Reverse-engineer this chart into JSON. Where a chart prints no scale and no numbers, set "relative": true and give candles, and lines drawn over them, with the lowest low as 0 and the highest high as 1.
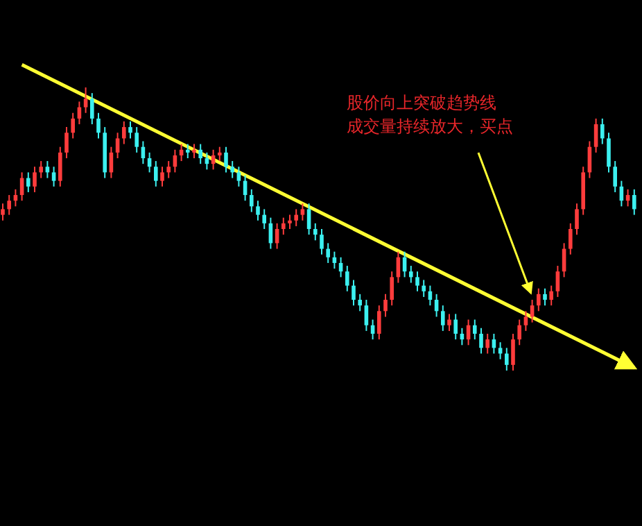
{
  "chart_data": {
    "type": "candlestick",
    "relative": true,
    "categories": [
      null,
      null,
      null,
      null,
      null,
      null,
      null,
      null,
      null,
      null,
      null,
      null,
      null,
      null,
      null,
      null,
      null,
      null,
      null,
      null,
      null,
      null,
      null,
      null,
      null,
      null,
      null,
      null,
      null,
      null,
      null,
      null,
      null,
      null,
      null,
      null,
      null,
      null,
      null,
      null,
      null,
      null,
      null,
      null,
      null,
      null,
      null,
      null,
      null,
      null,
      null,
      null,
      null,
      null,
      null,
      null,
      null,
      null,
      null,
      null,
      null,
      null,
      null,
      null,
      null,
      null,
      null,
      null,
      null,
      null,
      null,
      null,
      null,
      null,
      null,
      null,
      null,
      null,
      null,
      null,
      null,
      null,
      null,
      null,
      null,
      null,
      null,
      null,
      null,
      null,
      null,
      null,
      null,
      null,
      null,
      null,
      null,
      null,
      null,
      null
    ],
    "ohlc": [
      [
        0.55,
        0.59,
        0.53,
        0.57
      ],
      [
        0.57,
        0.62,
        0.55,
        0.6
      ],
      [
        0.6,
        0.64,
        0.58,
        0.62
      ],
      [
        0.62,
        0.7,
        0.6,
        0.68
      ],
      [
        0.68,
        0.7,
        0.63,
        0.65
      ],
      [
        0.65,
        0.72,
        0.63,
        0.7
      ],
      [
        0.7,
        0.74,
        0.68,
        0.72
      ],
      [
        0.72,
        0.74,
        0.68,
        0.7
      ],
      [
        0.7,
        0.72,
        0.65,
        0.67
      ],
      [
        0.67,
        0.79,
        0.65,
        0.77
      ],
      [
        0.77,
        0.86,
        0.75,
        0.84
      ],
      [
        0.84,
        0.91,
        0.82,
        0.89
      ],
      [
        0.89,
        0.95,
        0.87,
        0.93
      ],
      [
        0.93,
        1.0,
        0.91,
        0.96
      ],
      [
        0.96,
        0.98,
        0.87,
        0.89
      ],
      [
        0.89,
        0.91,
        0.82,
        0.84
      ],
      [
        0.84,
        0.86,
        0.68,
        0.7
      ],
      [
        0.7,
        0.79,
        0.68,
        0.77
      ],
      [
        0.77,
        0.84,
        0.75,
        0.82
      ],
      [
        0.82,
        0.88,
        0.8,
        0.86
      ],
      [
        0.86,
        0.88,
        0.82,
        0.84
      ],
      [
        0.84,
        0.86,
        0.77,
        0.79
      ],
      [
        0.79,
        0.81,
        0.73,
        0.75
      ],
      [
        0.75,
        0.77,
        0.7,
        0.72
      ],
      [
        0.72,
        0.74,
        0.65,
        0.67
      ],
      [
        0.67,
        0.72,
        0.65,
        0.7
      ],
      [
        0.7,
        0.74,
        0.68,
        0.72
      ],
      [
        0.72,
        0.78,
        0.7,
        0.76
      ],
      [
        0.76,
        0.8,
        0.74,
        0.78
      ],
      [
        0.78,
        0.8,
        0.75,
        0.77
      ],
      [
        0.77,
        0.8,
        0.75,
        0.78
      ],
      [
        0.78,
        0.8,
        0.73,
        0.75
      ],
      [
        0.75,
        0.77,
        0.71,
        0.73
      ],
      [
        0.73,
        0.78,
        0.71,
        0.76
      ],
      [
        0.76,
        0.79,
        0.74,
        0.77
      ],
      [
        0.77,
        0.79,
        0.7,
        0.72
      ],
      [
        0.72,
        0.74,
        0.68,
        0.7
      ],
      [
        0.7,
        0.72,
        0.65,
        0.67
      ],
      [
        0.67,
        0.69,
        0.6,
        0.62
      ],
      [
        0.62,
        0.64,
        0.56,
        0.58
      ],
      [
        0.58,
        0.6,
        0.53,
        0.55
      ],
      [
        0.55,
        0.57,
        0.5,
        0.52
      ],
      [
        0.52,
        0.54,
        0.43,
        0.45
      ],
      [
        0.45,
        0.52,
        0.43,
        0.5
      ],
      [
        0.5,
        0.54,
        0.48,
        0.52
      ],
      [
        0.52,
        0.55,
        0.5,
        0.53
      ],
      [
        0.53,
        0.57,
        0.51,
        0.55
      ],
      [
        0.55,
        0.59,
        0.53,
        0.57
      ],
      [
        0.57,
        0.59,
        0.48,
        0.5
      ],
      [
        0.5,
        0.52,
        0.46,
        0.48
      ],
      [
        0.48,
        0.5,
        0.41,
        0.43
      ],
      [
        0.43,
        0.45,
        0.38,
        0.4
      ],
      [
        0.4,
        0.42,
        0.36,
        0.38
      ],
      [
        0.38,
        0.4,
        0.33,
        0.35
      ],
      [
        0.35,
        0.37,
        0.28,
        0.3
      ],
      [
        0.3,
        0.32,
        0.23,
        0.25
      ],
      [
        0.25,
        0.27,
        0.21,
        0.23
      ],
      [
        0.23,
        0.25,
        0.14,
        0.16
      ],
      [
        0.16,
        0.18,
        0.11,
        0.13
      ],
      [
        0.13,
        0.23,
        0.11,
        0.21
      ],
      [
        0.21,
        0.27,
        0.19,
        0.25
      ],
      [
        0.25,
        0.35,
        0.23,
        0.33
      ],
      [
        0.33,
        0.42,
        0.31,
        0.4
      ],
      [
        0.4,
        0.42,
        0.33,
        0.35
      ],
      [
        0.35,
        0.37,
        0.31,
        0.33
      ],
      [
        0.33,
        0.35,
        0.28,
        0.3
      ],
      [
        0.3,
        0.32,
        0.26,
        0.28
      ],
      [
        0.28,
        0.3,
        0.23,
        0.25
      ],
      [
        0.25,
        0.27,
        0.19,
        0.21
      ],
      [
        0.21,
        0.23,
        0.14,
        0.16
      ],
      [
        0.16,
        0.2,
        0.14,
        0.18
      ],
      [
        0.18,
        0.2,
        0.11,
        0.13
      ],
      [
        0.13,
        0.15,
        0.09,
        0.11
      ],
      [
        0.11,
        0.18,
        0.09,
        0.16
      ],
      [
        0.16,
        0.18,
        0.11,
        0.13
      ],
      [
        0.13,
        0.15,
        0.06,
        0.08
      ],
      [
        0.08,
        0.13,
        0.06,
        0.11
      ],
      [
        0.11,
        0.13,
        0.06,
        0.08
      ],
      [
        0.08,
        0.1,
        0.04,
        0.06
      ],
      [
        0.06,
        0.08,
        0.0,
        0.02
      ],
      [
        0.02,
        0.13,
        0.0,
        0.11
      ],
      [
        0.11,
        0.18,
        0.09,
        0.16
      ],
      [
        0.16,
        0.21,
        0.14,
        0.19
      ],
      [
        0.19,
        0.25,
        0.17,
        0.23
      ],
      [
        0.23,
        0.29,
        0.21,
        0.27
      ],
      [
        0.27,
        0.29,
        0.23,
        0.25
      ],
      [
        0.25,
        0.3,
        0.23,
        0.28
      ],
      [
        0.28,
        0.37,
        0.26,
        0.35
      ],
      [
        0.35,
        0.45,
        0.33,
        0.43
      ],
      [
        0.43,
        0.52,
        0.41,
        0.5
      ],
      [
        0.5,
        0.59,
        0.48,
        0.57
      ],
      [
        0.57,
        0.72,
        0.55,
        0.7
      ],
      [
        0.7,
        0.81,
        0.68,
        0.79
      ],
      [
        0.79,
        0.89,
        0.77,
        0.87
      ],
      [
        0.87,
        0.89,
        0.8,
        0.82
      ],
      [
        0.82,
        0.84,
        0.7,
        0.72
      ],
      [
        0.72,
        0.74,
        0.63,
        0.65
      ],
      [
        0.65,
        0.67,
        0.58,
        0.6
      ],
      [
        0.6,
        0.64,
        0.58,
        0.62
      ],
      [
        0.62,
        0.64,
        0.55,
        0.57
      ]
    ],
    "colors": [
      "#ff3c3c",
      "#ff3c3c",
      "#ff3c3c",
      "#ff3c3c",
      "#3cf0f0",
      "#ff3c3c",
      "#ff3c3c",
      "#3cf0f0",
      "#3cf0f0",
      "#ff3c3c",
      "#ff3c3c",
      "#ff3c3c",
      "#ff3c3c",
      "#ff3c3c",
      "#3cf0f0",
      "#3cf0f0",
      "#3cf0f0",
      "#ff3c3c",
      "#ff3c3c",
      "#ff3c3c",
      "#3cf0f0",
      "#3cf0f0",
      "#3cf0f0",
      "#3cf0f0",
      "#3cf0f0",
      "#ff3c3c",
      "#ff3c3c",
      "#ff3c3c",
      "#ff3c3c",
      "#3cf0f0",
      "#ff3c3c",
      "#3cf0f0",
      "#3cf0f0",
      "#ff3c3c",
      "#ff3c3c",
      "#3cf0f0",
      "#3cf0f0",
      "#3cf0f0",
      "#3cf0f0",
      "#3cf0f0",
      "#3cf0f0",
      "#3cf0f0",
      "#3cf0f0",
      "#ff3c3c",
      "#ff3c3c",
      "#ff3c3c",
      "#ff3c3c",
      "#ff3c3c",
      "#3cf0f0",
      "#3cf0f0",
      "#3cf0f0",
      "#3cf0f0",
      "#3cf0f0",
      "#3cf0f0",
      "#3cf0f0",
      "#3cf0f0",
      "#3cf0f0",
      "#3cf0f0",
      "#3cf0f0",
      "#ff3c3c",
      "#ff3c3c",
      "#ff3c3c",
      "#ff3c3c",
      "#3cf0f0",
      "#3cf0f0",
      "#3cf0f0",
      "#3cf0f0",
      "#3cf0f0",
      "#3cf0f0",
      "#3cf0f0",
      "#ff3c3c",
      "#3cf0f0",
      "#3cf0f0",
      "#ff3c3c",
      "#3cf0f0",
      "#3cf0f0",
      "#ff3c3c",
      "#3cf0f0",
      "#3cf0f0",
      "#3cf0f0",
      "#ff3c3c",
      "#ff3c3c",
      "#ff3c3c",
      "#ff3c3c",
      "#ff3c3c",
      "#3cf0f0",
      "#ff3c3c",
      "#ff3c3c",
      "#ff3c3c",
      "#ff3c3c",
      "#ff3c3c",
      "#ff3c3c",
      "#ff3c3c",
      "#ff3c3c",
      "#3cf0f0",
      "#3cf0f0",
      "#3cf0f0",
      "#3cf0f0",
      "#ff3c3c",
      "#3cf0f0"
    ],
    "series": [
      {
        "type": "line",
        "color": "#ffff33",
        "values": [
          null,
          null,
          null,
          1.08,
          null,
          null,
          null,
          null,
          null,
          null,
          null,
          null,
          null,
          null,
          null,
          null,
          null,
          null,
          null,
          null,
          null,
          null,
          null,
          null,
          null,
          null,
          null,
          null,
          null,
          null,
          null,
          null,
          null,
          null,
          null,
          null,
          null,
          null,
          null,
          null,
          null,
          null,
          null,
          null,
          null,
          null,
          null,
          null,
          null,
          null,
          null,
          null,
          null,
          null,
          null,
          null,
          null,
          null,
          null,
          null,
          null,
          null,
          null,
          null,
          null,
          null,
          null,
          null,
          null,
          null,
          null,
          null,
          null,
          null,
          null,
          null,
          null,
          null,
          null,
          null,
          null,
          null,
          null,
          null,
          null,
          null,
          null,
          null,
          null,
          null,
          null,
          null,
          null,
          null,
          null,
          null,
          null,
          null,
          null,
          0.01
        ]
      }
    ],
    "annotations": [
      "股价向上突破趋势线",
      "成交量持续放大，买点"
    ]
  }
}
